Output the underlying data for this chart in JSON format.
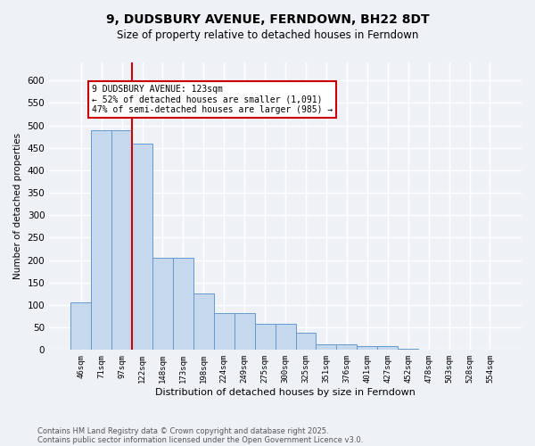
{
  "title": "9, DUDSBURY AVENUE, FERNDOWN, BH22 8DT",
  "subtitle": "Size of property relative to detached houses in Ferndown",
  "xlabel": "Distribution of detached houses by size in Ferndown",
  "ylabel": "Number of detached properties",
  "footnote1": "Contains HM Land Registry data © Crown copyright and database right 2025.",
  "footnote2": "Contains public sector information licensed under the Open Government Licence v3.0.",
  "categories": [
    "46sqm",
    "71sqm",
    "97sqm",
    "122sqm",
    "148sqm",
    "173sqm",
    "198sqm",
    "224sqm",
    "249sqm",
    "275sqm",
    "300sqm",
    "325sqm",
    "351sqm",
    "376sqm",
    "401sqm",
    "427sqm",
    "452sqm",
    "478sqm",
    "503sqm",
    "528sqm",
    "554sqm"
  ],
  "values": [
    105,
    490,
    490,
    460,
    205,
    205,
    125,
    82,
    82,
    58,
    58,
    38,
    12,
    12,
    9,
    9,
    2,
    0,
    0,
    0,
    0
  ],
  "bar_color": "#c5d8ed",
  "bar_edge_color": "#6699cc",
  "bar_edge_width": 0.7,
  "property_line_color": "#cc0000",
  "annotation_text": "9 DUDSBURY AVENUE: 123sqm\n← 52% of detached houses are smaller (1,091)\n47% of semi-detached houses are larger (985) →",
  "annotation_box_color": "#cc0000",
  "bg_color": "#eef2f7",
  "plot_bg_color": "#eef2f7",
  "grid_color": "#ffffff",
  "ylim": [
    0,
    640
  ],
  "yticks": [
    0,
    50,
    100,
    150,
    200,
    250,
    300,
    350,
    400,
    450,
    500,
    550,
    600
  ]
}
